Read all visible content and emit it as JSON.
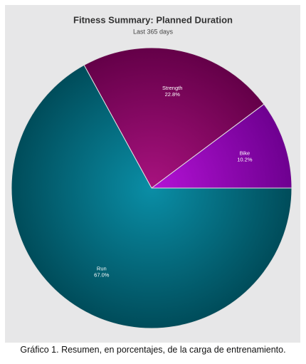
{
  "chart_data": {
    "type": "pie",
    "title": "Fitness Summary: Planned Duration",
    "subtitle": "Last 365 days",
    "categories": [
      "Bike",
      "Strength",
      "Run"
    ],
    "values": [
      10.2,
      22.8,
      67.0
    ],
    "value_labels": [
      "10.2%",
      "22.8%",
      "67.0%"
    ],
    "colors": [
      [
        "#b412d6",
        "#6e0090"
      ],
      [
        "#a8127f",
        "#640048"
      ],
      [
        "#0a8ea6",
        "#004c5a"
      ]
    ]
  },
  "caption": "Gráfico 1. Resumen, en porcentajes, de la carga de entrenamiento."
}
